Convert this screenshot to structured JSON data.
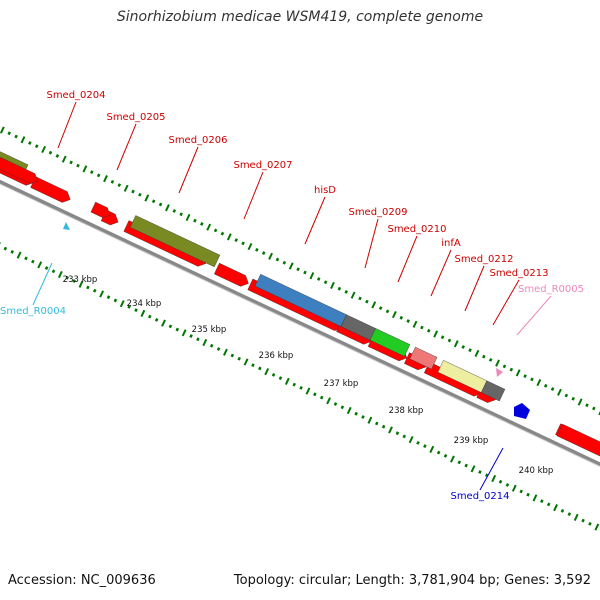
{
  "title": "Sinorhizobium medicae WSM419, complete genome",
  "footer": {
    "accession": "Accession: NC_009636",
    "summary": "Topology: circular; Length: 3,781,904 bp; Genes: 3,592"
  },
  "colors": {
    "cds": "#ff0000",
    "backbone": "#888888",
    "tick": "#007700",
    "label_red": "#cc0000",
    "label_cyan": "#33bbdd",
    "label_blue": "#0000cc",
    "label_pink": "#ee88bb"
  },
  "scale_labels": [
    "233 kbp",
    "234 kbp",
    "235 kbp",
    "236 kbp",
    "237 kbp",
    "238 kbp",
    "239 kbp",
    "240 kbp"
  ],
  "features": [
    {
      "name": "Smed_0204",
      "type": "CDS",
      "label_color": "#cc0000"
    },
    {
      "name": "Smed_0205",
      "type": "CDS",
      "label_color": "#cc0000"
    },
    {
      "name": "Smed_0206",
      "type": "CDS",
      "label_color": "#cc0000"
    },
    {
      "name": "Smed_0207",
      "type": "CDS",
      "label_color": "#cc0000"
    },
    {
      "name": "hisD",
      "type": "CDS",
      "label_color": "#cc0000"
    },
    {
      "name": "Smed_0209",
      "type": "CDS",
      "label_color": "#cc0000"
    },
    {
      "name": "Smed_0210",
      "type": "CDS",
      "label_color": "#cc0000"
    },
    {
      "name": "infA",
      "type": "CDS",
      "label_color": "#cc0000"
    },
    {
      "name": "Smed_0212",
      "type": "CDS",
      "label_color": "#cc0000"
    },
    {
      "name": "Smed_0213",
      "type": "CDS",
      "label_color": "#cc0000"
    },
    {
      "name": "Smed_R0005",
      "type": "tRNA",
      "label_color": "#ee88bb"
    },
    {
      "name": "Smed_R0004",
      "type": "tRNA",
      "label_color": "#33bbdd"
    },
    {
      "name": "Smed_0214",
      "type": "gene",
      "label_color": "#0000cc"
    }
  ]
}
